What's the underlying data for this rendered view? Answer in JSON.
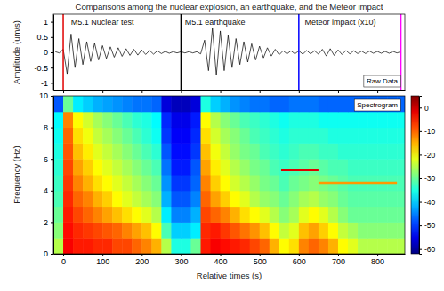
{
  "chart_data": [
    {
      "type": "line",
      "title": "Comparisons among the nuclear explosion, an earthquake, and the Meteor impact",
      "ylabel": "Amplitude (um/s)",
      "xlim": [
        -25,
        870
      ],
      "xticks": [
        0,
        100,
        200,
        300,
        400,
        500,
        600,
        700,
        800
      ],
      "ylim": [
        -1.25,
        1.25
      ],
      "yticks": [
        -1,
        -0.5,
        0,
        0.5,
        1
      ],
      "tick_labels": "y",
      "inset_label": "Raw Data",
      "x": [
        -20,
        -10,
        0,
        10,
        20,
        30,
        40,
        50,
        60,
        70,
        80,
        90,
        100,
        110,
        120,
        130,
        140,
        150,
        160,
        170,
        180,
        190,
        200,
        210,
        220,
        230,
        240,
        250,
        260,
        270,
        280,
        290,
        300,
        310,
        320,
        330,
        340,
        350,
        360,
        370,
        380,
        390,
        400,
        410,
        420,
        430,
        440,
        450,
        460,
        470,
        480,
        490,
        500,
        510,
        520,
        530,
        540,
        550,
        560,
        570,
        580,
        590,
        600,
        610,
        620,
        630,
        640,
        650,
        660,
        670,
        680,
        690,
        700,
        710,
        720,
        730,
        740,
        750,
        760,
        770,
        780,
        790,
        800,
        810,
        820,
        830,
        840,
        850,
        860
      ],
      "series": [
        {
          "color": "#000000",
          "values": [
            0.02,
            -0.02,
            0.1,
            -0.7,
            0.6,
            -0.5,
            0.45,
            -0.4,
            0.35,
            -0.3,
            0.3,
            -0.25,
            0.22,
            -0.2,
            0.18,
            -0.16,
            0.15,
            -0.13,
            0.12,
            -0.1,
            0.1,
            -0.09,
            0.08,
            -0.07,
            0.06,
            -0.06,
            0.05,
            -0.04,
            0.03,
            -0.03,
            0.02,
            -0.02,
            0.02,
            -0.02,
            0.02,
            -0.02,
            0.02,
            -0.05,
            0.4,
            -0.6,
            0.8,
            -0.75,
            0.7,
            -0.6,
            0.55,
            -0.5,
            0.45,
            -0.4,
            0.35,
            -0.32,
            0.28,
            -0.25,
            0.2,
            -0.18,
            0.15,
            -0.12,
            0.1,
            -0.08,
            0.05,
            -0.05,
            0.05,
            -0.05,
            0.05,
            -0.06,
            0.06,
            -0.05,
            0.05,
            -0.06,
            0.1,
            -0.12,
            0.12,
            -0.1,
            0.08,
            -0.07,
            0.06,
            -0.05,
            0.05,
            -0.04,
            0.04,
            -0.04,
            0.04,
            -0.03,
            0.03,
            -0.03,
            0.03,
            -0.03,
            0.03,
            -0.02,
            0.02
          ]
        }
      ],
      "events": [
        {
          "x": 0,
          "color": "#e00000"
        },
        {
          "x": 300,
          "color": "#000000"
        },
        {
          "x": 600,
          "color": "#0000ff"
        },
        {
          "x": 860,
          "color": "#ff00ff"
        }
      ],
      "annotations": [
        {
          "text": "M5.1 Nuclear test",
          "x": 20,
          "y": 0.9
        },
        {
          "text": "M5.1 earthquake",
          "x": 310,
          "y": 0.9
        },
        {
          "text": "Meteor impact (x10)",
          "x": 615,
          "y": 0.9
        }
      ]
    },
    {
      "type": "heatmap",
      "xlabel": "Relative times (s)",
      "ylabel": "Frequency (Hz)",
      "xlim": [
        -25,
        870
      ],
      "xticks": [
        0,
        100,
        200,
        300,
        400,
        500,
        600,
        700,
        800
      ],
      "ylim": [
        0,
        10
      ],
      "yticks": [
        0,
        2,
        4,
        6,
        8,
        10
      ],
      "inset_label": "Spectrogram",
      "cells": {
        "x_edges": [
          -25,
          0,
          25,
          50,
          75,
          100,
          125,
          150,
          175,
          200,
          225,
          250,
          275,
          300,
          325,
          350,
          375,
          400,
          425,
          450,
          475,
          500,
          525,
          550,
          575,
          600,
          625,
          650,
          675,
          700,
          725,
          750,
          775,
          800,
          825,
          850,
          875
        ],
        "y_edges": [
          0,
          1,
          2,
          3,
          4,
          5,
          6,
          7,
          8,
          9,
          10
        ],
        "z": [
          [
            -25,
            -3,
            -5,
            -5,
            -6,
            -6,
            -8,
            -8,
            -10,
            -12,
            -15,
            -25,
            -35,
            -35,
            -30,
            -5,
            -3,
            -4,
            -5,
            -6,
            -8,
            -10,
            -15,
            -20,
            -18,
            -12,
            -10,
            -12,
            -15,
            -20,
            -22,
            -25,
            -25,
            -25,
            -25,
            -25
          ],
          [
            -28,
            -4,
            -6,
            -7,
            -8,
            -9,
            -10,
            -12,
            -14,
            -16,
            -20,
            -32,
            -40,
            -40,
            -38,
            -6,
            -5,
            -7,
            -9,
            -11,
            -13,
            -16,
            -20,
            -24,
            -22,
            -16,
            -14,
            -17,
            -20,
            -24,
            -26,
            -28,
            -28,
            -28,
            -28,
            -28
          ],
          [
            -30,
            -5,
            -8,
            -10,
            -12,
            -14,
            -16,
            -18,
            -20,
            -22,
            -25,
            -38,
            -45,
            -45,
            -42,
            -8,
            -10,
            -12,
            -15,
            -18,
            -20,
            -22,
            -25,
            -28,
            -26,
            -22,
            -20,
            -22,
            -25,
            -28,
            -30,
            -30,
            -30,
            -30,
            -30,
            -30
          ],
          [
            -32,
            -6,
            -10,
            -12,
            -15,
            -17,
            -20,
            -22,
            -24,
            -26,
            -28,
            -42,
            -48,
            -48,
            -45,
            -10,
            -14,
            -17,
            -20,
            -22,
            -25,
            -27,
            -28,
            -30,
            -28,
            -26,
            -25,
            -27,
            -28,
            -30,
            -31,
            -31,
            -31,
            -31,
            -31,
            -31
          ],
          [
            -33,
            -7,
            -12,
            -15,
            -18,
            -20,
            -22,
            -24,
            -26,
            -28,
            -30,
            -44,
            -50,
            -50,
            -47,
            -12,
            -17,
            -20,
            -23,
            -25,
            -27,
            -29,
            -30,
            -32,
            -30,
            -29,
            -28,
            -29,
            -30,
            -31,
            -32,
            -32,
            -32,
            -32,
            -32,
            -32
          ],
          [
            -34,
            -8,
            -14,
            -17,
            -20,
            -22,
            -24,
            -26,
            -28,
            -30,
            -32,
            -46,
            -52,
            -52,
            -48,
            -14,
            -19,
            -22,
            -25,
            -27,
            -29,
            -30,
            -32,
            -33,
            -32,
            -31,
            -30,
            -31,
            -32,
            -32,
            -33,
            -33,
            -33,
            -33,
            -33,
            -33
          ],
          [
            -35,
            -9,
            -16,
            -19,
            -22,
            -24,
            -26,
            -28,
            -30,
            -32,
            -34,
            -48,
            -53,
            -53,
            -50,
            -16,
            -21,
            -24,
            -27,
            -29,
            -30,
            -32,
            -33,
            -34,
            -33,
            -32,
            -32,
            -33,
            -33,
            -34,
            -34,
            -34,
            -34,
            -34,
            -34,
            -34
          ],
          [
            -36,
            -10,
            -18,
            -21,
            -24,
            -26,
            -28,
            -30,
            -32,
            -34,
            -36,
            -50,
            -54,
            -54,
            -51,
            -18,
            -23,
            -26,
            -28,
            -30,
            -32,
            -33,
            -34,
            -35,
            -34,
            -34,
            -34,
            -34,
            -35,
            -35,
            -35,
            -35,
            -35,
            -35,
            -35,
            -35
          ],
          [
            -37,
            -12,
            -20,
            -23,
            -26,
            -28,
            -30,
            -32,
            -34,
            -35,
            -37,
            -51,
            -55,
            -55,
            -52,
            -20,
            -25,
            -28,
            -30,
            -32,
            -33,
            -34,
            -35,
            -36,
            -35,
            -35,
            -35,
            -36,
            -36,
            -36,
            -36,
            -36,
            -36,
            -36,
            -36,
            -36
          ],
          [
            -48,
            -30,
            -38,
            -40,
            -42,
            -43,
            -44,
            -45,
            -46,
            -46,
            -47,
            -56,
            -58,
            -58,
            -56,
            -35,
            -40,
            -42,
            -44,
            -45,
            -46,
            -46,
            -47,
            -47,
            -46,
            -46,
            -46,
            -47,
            -47,
            -47,
            -47,
            -47,
            -47,
            -47,
            -47,
            -47
          ]
        ]
      },
      "lines": [
        {
          "x": [
            555,
            650
          ],
          "y": [
            5.3,
            5.3
          ],
          "color": "#e00000"
        },
        {
          "x": [
            650,
            850
          ],
          "y": [
            4.5,
            4.5
          ],
          "color": "#ff9900"
        }
      ],
      "colorbar": {
        "range": [
          -62,
          5
        ],
        "ticks": [
          -60,
          -50,
          -40,
          -30,
          -20,
          -10,
          0
        ]
      }
    }
  ]
}
